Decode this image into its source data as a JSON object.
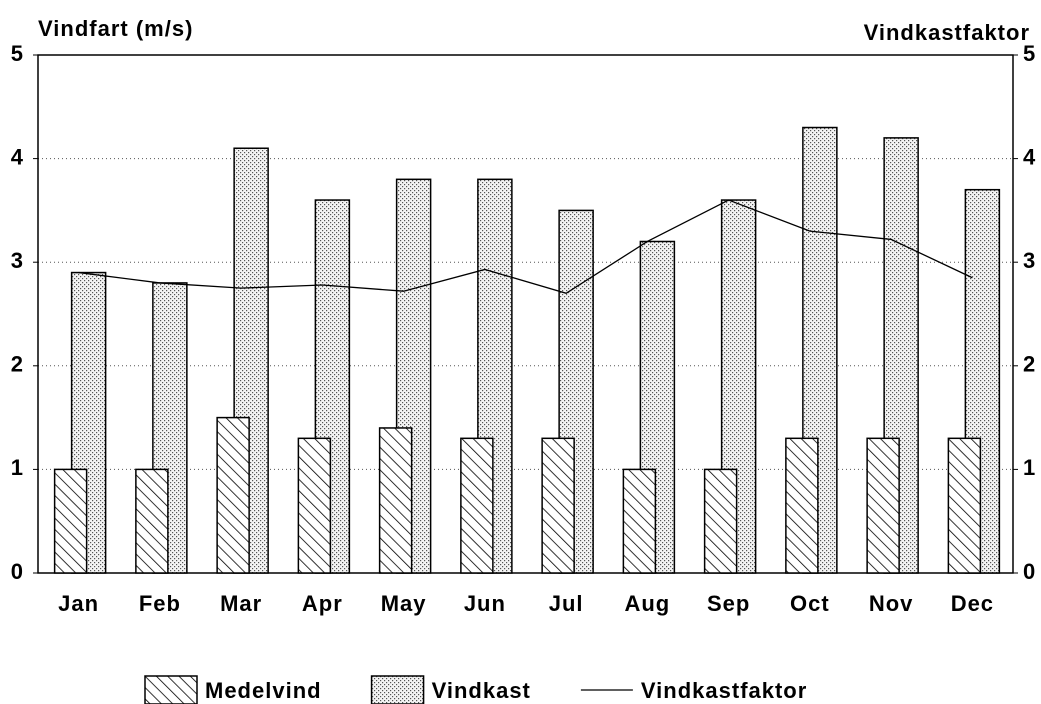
{
  "chart_data": {
    "type": "bar",
    "y_label": "Vindfart (m/s)",
    "y2_label": "Vindkastfaktor",
    "categories": [
      "Jan",
      "Feb",
      "Mar",
      "Apr",
      "May",
      "Jun",
      "Jul",
      "Aug",
      "Sep",
      "Oct",
      "Nov",
      "Dec"
    ],
    "series": [
      {
        "name": "Medelvind",
        "type": "bar",
        "pattern": "hatch",
        "color": "#000000",
        "values": [
          1.0,
          1.0,
          1.5,
          1.3,
          1.4,
          1.3,
          1.3,
          1.0,
          1.0,
          1.3,
          1.3,
          1.3
        ]
      },
      {
        "name": "Vindkast",
        "type": "bar",
        "pattern": "dots",
        "color": "#000000",
        "values": [
          2.9,
          2.8,
          4.1,
          3.6,
          3.8,
          3.8,
          3.5,
          3.2,
          3.6,
          4.3,
          4.2,
          3.7
        ]
      },
      {
        "name": "Vindkastfaktor",
        "type": "line",
        "axis": "y2",
        "color": "#000000",
        "values": [
          2.9,
          2.8,
          2.75,
          2.78,
          2.72,
          2.93,
          2.7,
          3.2,
          3.6,
          3.3,
          3.22,
          2.85
        ]
      }
    ],
    "ylim": [
      0,
      5
    ],
    "yticks": [
      0,
      1,
      2,
      3,
      4,
      5
    ],
    "y2lim": [
      0,
      5
    ],
    "y2ticks": [
      0,
      1,
      2,
      3,
      4,
      5
    ],
    "grid": true
  }
}
